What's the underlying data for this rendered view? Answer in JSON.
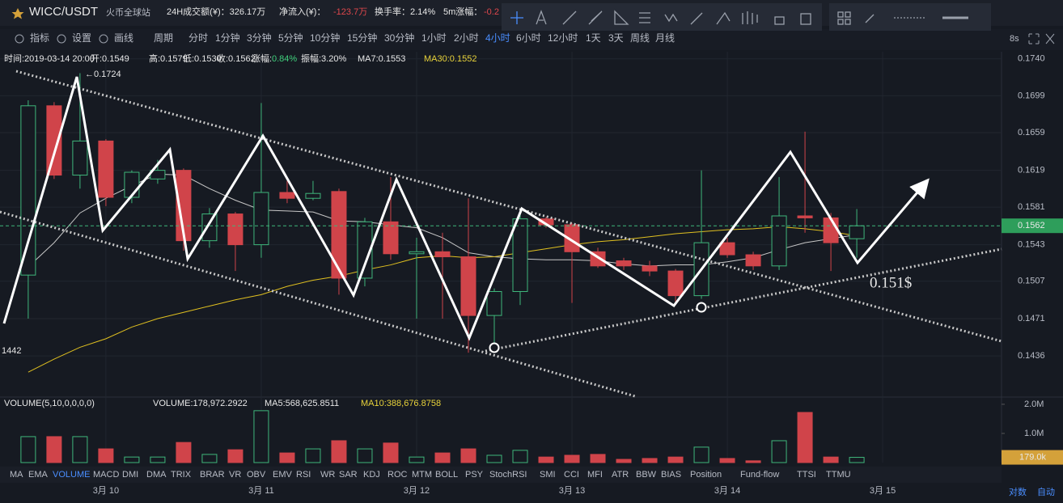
{
  "header": {
    "symbol": "WICC/USDT",
    "exchange": "火币全球站",
    "stats": [
      "24H成交额(¥)：326.17万",
      "净流入(¥)：",
      "-123.7万",
      "换手率：2.14%",
      "5m涨幅：",
      "-0.2"
    ]
  },
  "toolbar": {
    "tools": [
      "指标",
      "设置",
      "画线"
    ],
    "period_label": "周期",
    "periods": [
      "分时",
      "1分钟",
      "3分钟",
      "5分钟",
      "10分钟",
      "15分钟",
      "30分钟",
      "1小时",
      "2小时",
      "4小时",
      "6小时",
      "12小时",
      "1天",
      "3天",
      "周线",
      "月线"
    ],
    "refresh": "8s"
  },
  "info": [
    "时间:2019-03-14 20:00",
    "开:0.1549",
    "高:0.1579",
    "低:0.1530",
    "收:0.1562",
    "涨幅:",
    "0.84%",
    "振幅:3.20%",
    "MA7:0.1553",
    "MA30:0.1552"
  ],
  "volume_info": [
    "VOLUME(5,10,0,0,0,0)",
    "VOLUME:178,972.2922",
    "MA5:568,625.8511",
    "MA10:388,676.8758"
  ],
  "indicators": [
    "MA",
    "EMA",
    "VOLUME",
    "MACD",
    "DMI",
    "DMA",
    "TRIX",
    "BRAR",
    "VR",
    "OBV",
    "EMV",
    "RSI",
    "WR",
    "SAR",
    "KDJ",
    "ROC",
    "MTM",
    "BOLL",
    "PSY",
    "StochRSI",
    "SMI",
    "CCI",
    "MFI",
    "ATR",
    "BBW",
    "BIAS",
    "Position",
    "Fund-flow",
    "TTSI",
    "TTMU"
  ],
  "footer": [
    "对数",
    "自动"
  ],
  "chart_data": [
    {
      "type": "candlestick",
      "log": true,
      "grid": true,
      "up_color": "#3fb67b",
      "down_color": "#d0444a",
      "open": [
        0.1513,
        0.1688,
        0.1614,
        0.165,
        0.1591,
        0.161,
        0.1619,
        0.1547,
        0.1574,
        0.1543,
        0.1596,
        0.159,
        0.1597,
        0.151,
        0.1566,
        0.1534,
        0.1536,
        0.1531,
        0.1474,
        0.1497,
        0.1569,
        0.1563,
        0.1536,
        0.1527,
        0.1522,
        0.1517,
        0.1493,
        0.1545,
        0.1533,
        0.1522,
        0.1572,
        0.157,
        0.1549
      ],
      "high": [
        0.1694,
        0.1692,
        0.1724,
        0.1652,
        0.1619,
        0.163,
        0.1621,
        0.158,
        0.1576,
        0.1691,
        0.1608,
        0.1608,
        0.16,
        0.157,
        0.1612,
        0.155,
        0.1555,
        0.159,
        0.15,
        0.1575,
        0.1571,
        0.1565,
        0.154,
        0.153,
        0.1527,
        0.1519,
        0.1619,
        0.155,
        0.1536,
        0.1612,
        0.166,
        0.1575,
        0.1579
      ],
      "low": [
        0.1471,
        0.161,
        0.16,
        0.1582,
        0.1585,
        0.1605,
        0.1537,
        0.154,
        0.1517,
        0.153,
        0.1585,
        0.1588,
        0.1494,
        0.1502,
        0.1528,
        0.1471,
        0.1471,
        0.1439,
        0.1441,
        0.1484,
        0.156,
        0.1486,
        0.152,
        0.1518,
        0.1512,
        0.1485,
        0.149,
        0.153,
        0.1518,
        0.1518,
        0.1555,
        0.1517,
        0.153
      ],
      "close": [
        0.1688,
        0.1614,
        0.165,
        0.1591,
        0.1617,
        0.1619,
        0.1547,
        0.1574,
        0.1543,
        0.1596,
        0.159,
        0.1595,
        0.151,
        0.1566,
        0.1534,
        0.1536,
        0.1531,
        0.1474,
        0.1497,
        0.1569,
        0.1563,
        0.1536,
        0.1522,
        0.1522,
        0.1517,
        0.1493,
        0.1545,
        0.1533,
        0.1522,
        0.1572,
        0.157,
        0.1545,
        0.1562
      ],
      "series": [
        {
          "color": "#c8c8c8",
          "values": [
            0.1521,
            0.1545,
            0.1575,
            0.159,
            0.1603,
            0.1615,
            0.1614,
            0.16,
            0.1588,
            0.1578,
            0.1577,
            0.1576,
            0.1567,
            0.1566,
            0.1563,
            0.156,
            0.155,
            0.1535,
            0.1531,
            0.1529,
            0.1528,
            0.1528,
            0.1527,
            0.1524,
            0.1522,
            0.1523,
            0.1523,
            0.1526,
            0.153,
            0.1538,
            0.1545,
            0.1549,
            0.1553
          ]
        },
        {
          "color": "#e0c020",
          "values": [
            0.1421,
            0.1433,
            0.1444,
            0.1452,
            0.1463,
            0.1471,
            0.1477,
            0.1483,
            0.1489,
            0.1494,
            0.1502,
            0.1508,
            0.1512,
            0.1518,
            0.1523,
            0.153,
            0.1532,
            0.153,
            0.1531,
            0.1535,
            0.1539,
            0.1543,
            0.1546,
            0.1548,
            0.1551,
            0.1554,
            0.1556,
            0.1558,
            0.1559,
            0.1561,
            0.1559,
            0.1556,
            0.1552
          ]
        }
      ],
      "xlim": [
        -1.09,
        37.59
      ],
      "xticks": [
        {
          "value": 3,
          "label": "3月 10"
        },
        {
          "value": 9,
          "label": "3月 11"
        },
        {
          "value": 15,
          "label": "3月 12"
        },
        {
          "value": 21,
          "label": "3月 13"
        },
        {
          "value": 27,
          "label": "3月 14"
        },
        {
          "value": 33,
          "label": "3月 15"
        }
      ],
      "ylim": [
        0.1399,
        0.1748
      ],
      "yticks": [
        {
          "value": 0.174,
          "label": "0.1740"
        },
        {
          "value": 0.1699,
          "label": "0.1699"
        },
        {
          "value": 0.1659,
          "label": "0.1659"
        },
        {
          "value": 0.1619,
          "label": "0.1619"
        },
        {
          "value": 0.1581,
          "label": "0.1581"
        },
        {
          "value": 0.1543,
          "label": "0.1543"
        },
        {
          "value": 0.1507,
          "label": "0.1507"
        },
        {
          "value": 0.1471,
          "label": "0.1471"
        },
        {
          "value": 0.1436,
          "label": "0.1436"
        }
      ],
      "annotations": [
        "←0.1724",
        "1442",
        "0.151$"
      ]
    },
    {
      "type": "bar",
      "up_color": "#3fb67b",
      "down_color": "#d0444a",
      "values": [
        890000,
        890000,
        890000,
        470000,
        190000,
        190000,
        690000,
        280000,
        440000,
        1780000,
        330000,
        470000,
        750000,
        470000,
        670000,
        190000,
        330000,
        470000,
        250000,
        420000,
        190000,
        250000,
        280000,
        110000,
        140000,
        190000,
        530000,
        140000,
        60000,
        750000,
        1720000,
        190000,
        178972.2922
      ],
      "current_label": "179.0k",
      "ylim": [
        0,
        2220000
      ],
      "yticks": [
        {
          "value": 1000000,
          "label": "1.0M"
        },
        {
          "value": 2000000,
          "label": "2.0M"
        }
      ]
    }
  ]
}
